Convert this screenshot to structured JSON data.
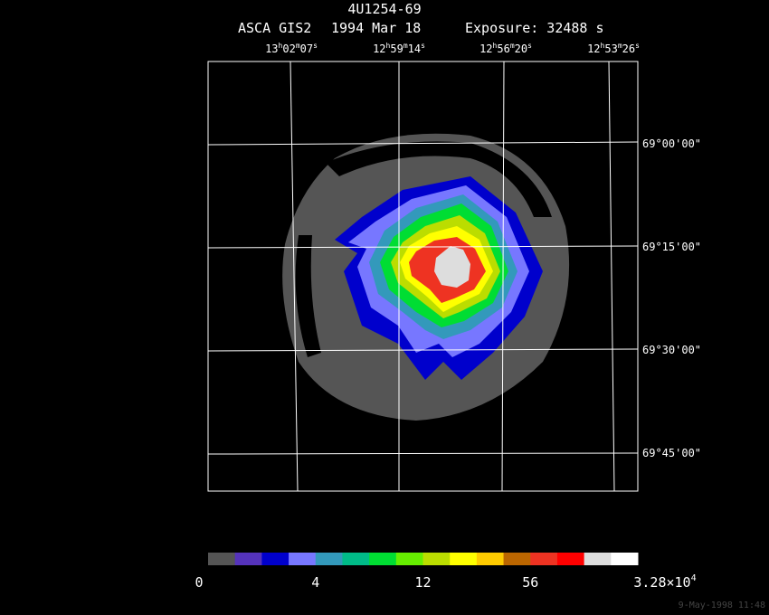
{
  "title": "4U1254-69",
  "subtitle": {
    "instrument": "ASCA GIS2",
    "date": "1994 Mar 18",
    "exposure": "Exposure: 32488 s"
  },
  "ra_labels": [
    [
      "13",
      "h",
      "02",
      "m",
      "07",
      "s"
    ],
    [
      "12",
      "h",
      "59",
      "m",
      "14",
      "s"
    ],
    [
      "12",
      "h",
      "56",
      "m",
      "20",
      "s"
    ],
    [
      "12",
      "h",
      "53",
      "m",
      "26",
      "s"
    ]
  ],
  "dec_labels": [
    "69°00'00\"",
    "69°15'00\"",
    "69°30'00\"",
    "69°45'00\""
  ],
  "colorbar": {
    "colors": [
      "#555555",
      "#5533bb",
      "#0000cc",
      "#7777ff",
      "#3399bb",
      "#00bb88",
      "#00dd33",
      "#66ee00",
      "#bbdd00",
      "#ffff00",
      "#ffcc00",
      "#bb6600",
      "#ee3322",
      "#ff0000",
      "#dddddd",
      "#ffffff"
    ],
    "labels": [
      "0",
      "4",
      "12",
      "56"
    ],
    "max_label": [
      "3.28×10",
      "4"
    ]
  },
  "timestamp": "9-May-1998 11:48"
}
